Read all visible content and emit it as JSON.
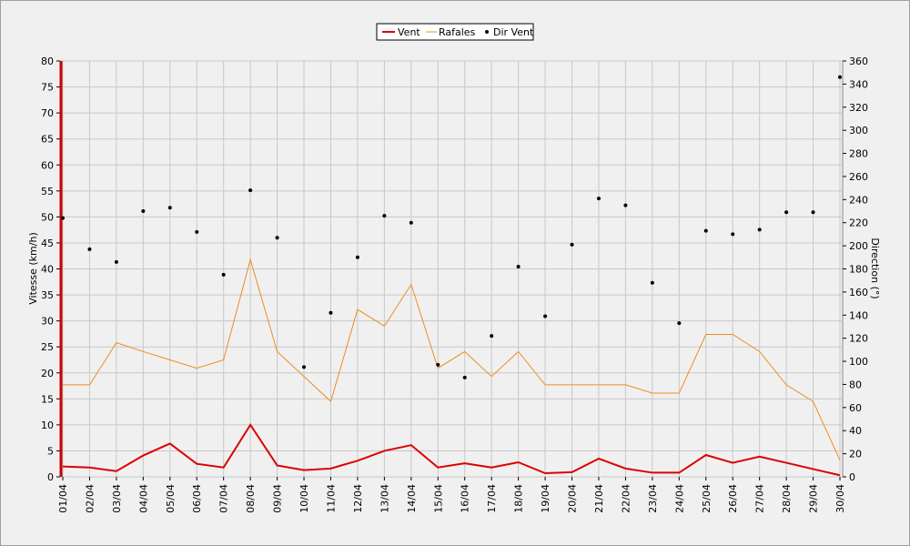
{
  "chart_data": {
    "type": "line",
    "categories": [
      "01/04",
      "02/04",
      "03/04",
      "04/04",
      "05/04",
      "06/04",
      "07/04",
      "08/04",
      "09/04",
      "10/04",
      "11/04",
      "12/04",
      "13/04",
      "14/04",
      "15/04",
      "16/04",
      "17/04",
      "18/04",
      "19/04",
      "20/04",
      "21/04",
      "22/04",
      "23/04",
      "24/04",
      "25/04",
      "26/04",
      "27/04",
      "28/04",
      "29/04",
      "30/04"
    ],
    "ylabel": "Vitesse (km/h)",
    "y2label": "Direction (°)",
    "ylim": [
      0,
      80
    ],
    "yticks": [
      0,
      5,
      10,
      15,
      20,
      25,
      30,
      35,
      40,
      45,
      50,
      55,
      60,
      65,
      70,
      75,
      80
    ],
    "y2lim": [
      0,
      360
    ],
    "y2ticks": [
      0,
      20,
      40,
      60,
      80,
      100,
      120,
      140,
      160,
      180,
      200,
      220,
      240,
      260,
      280,
      300,
      320,
      340,
      360
    ],
    "grid": true,
    "legend_position": "top-center",
    "series": [
      {
        "name": "Vent",
        "color": "#dd0000",
        "style": "line",
        "axis": "left",
        "values": [
          2.0,
          1.8,
          1.1,
          4.1,
          6.4,
          2.5,
          1.8,
          10.0,
          2.2,
          1.3,
          1.6,
          3.1,
          5.0,
          6.1,
          1.8,
          2.6,
          1.8,
          2.8,
          0.7,
          0.9,
          3.5,
          1.6,
          0.8,
          0.8,
          4.2,
          2.7,
          3.9,
          2.7,
          1.5,
          0.3
        ]
      },
      {
        "name": "Rafales",
        "color": "#f08c1e",
        "style": "line",
        "axis": "left",
        "values": [
          17.7,
          17.7,
          25.8,
          24.1,
          22.5,
          20.9,
          22.5,
          41.8,
          24.1,
          19.3,
          14.5,
          32.2,
          29.0,
          37.0,
          20.9,
          24.1,
          19.3,
          24.1,
          17.7,
          17.7,
          17.7,
          17.7,
          16.1,
          16.1,
          27.4,
          27.4,
          24.1,
          17.7,
          14.5,
          3.2
        ]
      },
      {
        "name": "Dir Vent",
        "color": "#000000",
        "style": "points",
        "axis": "right",
        "values": [
          224,
          197,
          186,
          230,
          233,
          212,
          175,
          248,
          207,
          95,
          142,
          190,
          226,
          220,
          97,
          86,
          122,
          182,
          139,
          201,
          241,
          235,
          168,
          133,
          213,
          210,
          214,
          229,
          229,
          346
        ]
      }
    ]
  }
}
